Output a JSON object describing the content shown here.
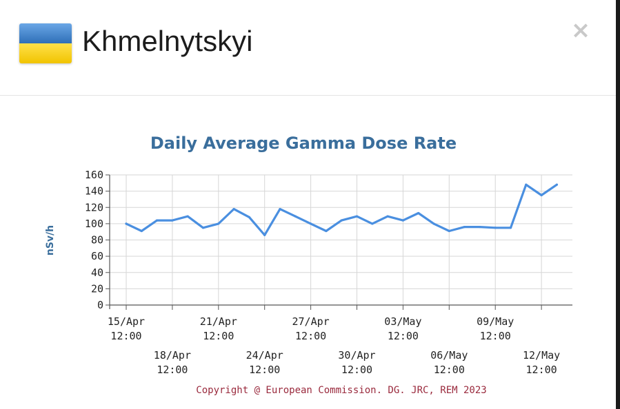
{
  "dialog": {
    "title": "Khmelnytskyi",
    "close_label": "×",
    "flag": {
      "name": "ukraine-flag",
      "colors": [
        "#2f6fb8",
        "#f1c400"
      ]
    }
  },
  "chart_data": {
    "type": "line",
    "title": "Daily Average Gamma Dose Rate",
    "ylabel": "nSv/h",
    "xlabel": "",
    "ylim": [
      0,
      160
    ],
    "yticks": [
      0,
      20,
      40,
      60,
      80,
      100,
      120,
      140,
      160
    ],
    "grid": true,
    "line_color": "#4a8fe0",
    "x_tick_labels": [
      [
        "15/Apr",
        "12:00"
      ],
      [
        "18/Apr",
        "12:00"
      ],
      [
        "21/Apr",
        "12:00"
      ],
      [
        "24/Apr",
        "12:00"
      ],
      [
        "27/Apr",
        "12:00"
      ],
      [
        "30/Apr",
        "12:00"
      ],
      [
        "03/May",
        "12:00"
      ],
      [
        "06/May",
        "12:00"
      ],
      [
        "09/May",
        "12:00"
      ],
      [
        "12/May",
        "12:00"
      ]
    ],
    "series": [
      {
        "x": [
          "15/Apr",
          "16/Apr",
          "17/Apr",
          "18/Apr",
          "19/Apr",
          "20/Apr",
          "21/Apr",
          "22/Apr",
          "23/Apr",
          "24/Apr",
          "25/Apr",
          "26/Apr",
          "27/Apr",
          "28/Apr",
          "29/Apr",
          "30/Apr",
          "01/May",
          "02/May",
          "03/May",
          "04/May",
          "05/May",
          "06/May",
          "07/May",
          "08/May",
          "09/May",
          "10/May",
          "11/May",
          "12/May",
          "13/May"
        ],
        "values": [
          100,
          91,
          104,
          104,
          109,
          95,
          100,
          118,
          108,
          86,
          118,
          109,
          100,
          91,
          104,
          109,
          100,
          109,
          104,
          113,
          100,
          91,
          96,
          96,
          95,
          95,
          148,
          135,
          148
        ]
      }
    ],
    "copyright": "Copyright @ European Commission. DG. JRC, REM 2023"
  }
}
